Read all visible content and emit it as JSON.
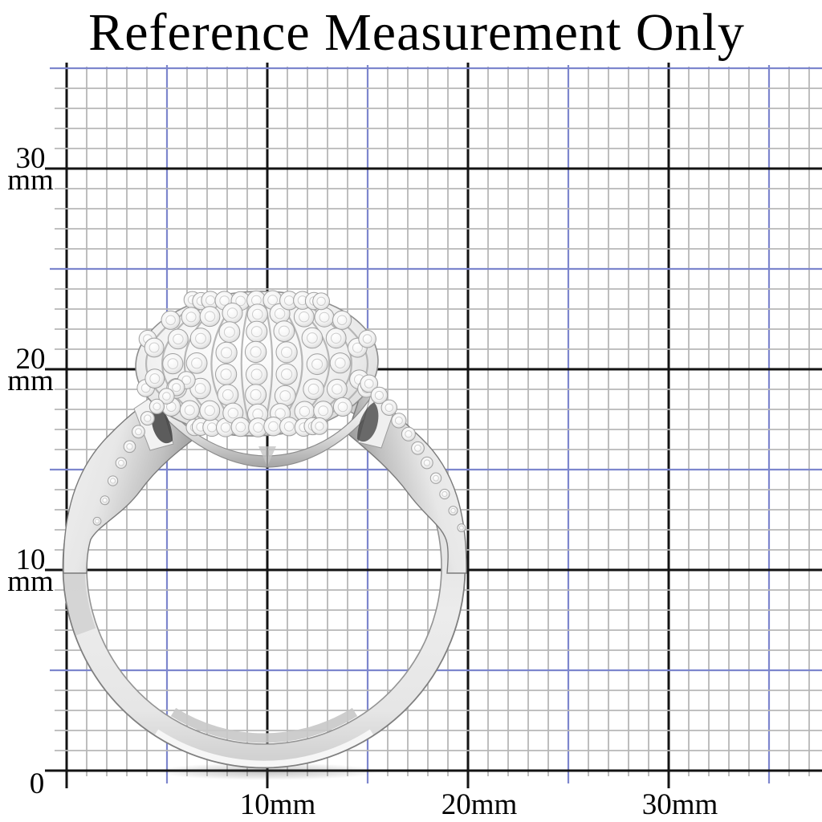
{
  "title": "Reference Measurement Only",
  "subject": {
    "description": "Silver-tone ring with a pave crystal dome top and stone-set tapering shoulders photographed over a millimeter reference grid",
    "metal_color": "#dcdcdc",
    "stone_color": "#f5f5f5"
  },
  "grid": {
    "unit": "mm",
    "minor_step_mm": 1,
    "accent_step_mm": 5,
    "major_step_mm": 10,
    "colors": {
      "background": "#ffffff",
      "minor": "#b7b7b7",
      "accent": "#7d86cd",
      "major": "#131313"
    }
  },
  "y_axis": {
    "labels": [
      {
        "value": "30",
        "unit": "mm"
      },
      {
        "value": "20",
        "unit": "mm"
      },
      {
        "value": "10",
        "unit": "mm"
      },
      {
        "value": "0",
        "unit": ""
      }
    ]
  },
  "x_axis": {
    "labels": [
      "10mm",
      "20mm",
      "30mm"
    ]
  }
}
